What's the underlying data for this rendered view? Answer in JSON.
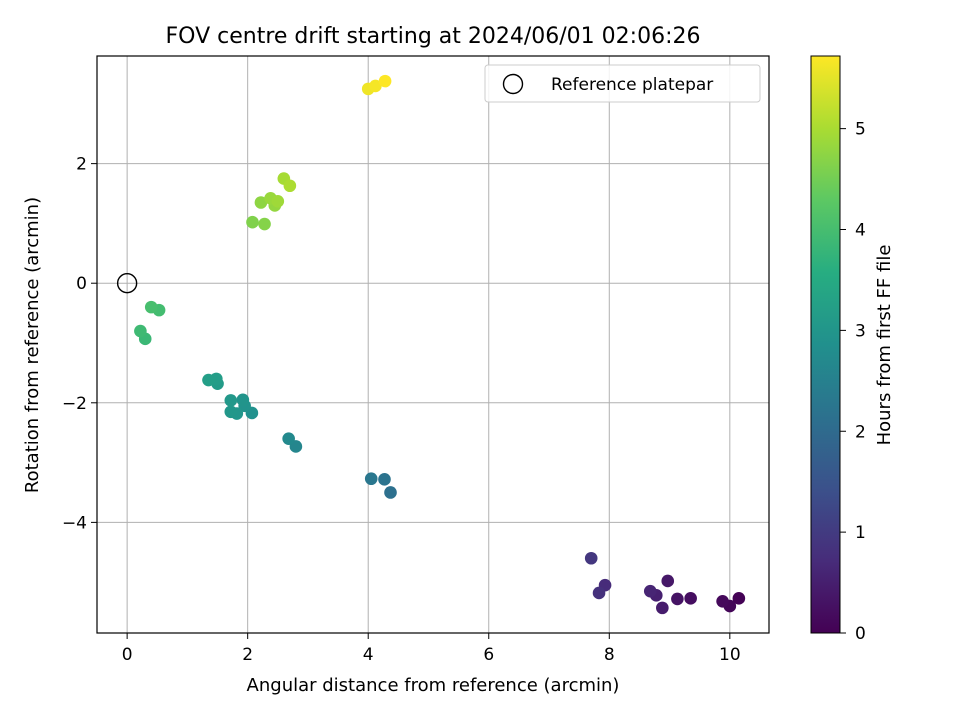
{
  "chart_data": {
    "type": "scatter",
    "title": "FOV centre drift starting at 2024/06/01 02:06:26",
    "xlabel": "Angular distance from reference (arcmin)",
    "ylabel": "Rotation from reference (arcmin)",
    "xlim": [
      -0.5,
      10.65
    ],
    "ylim": [
      -5.85,
      3.8
    ],
    "x_ticks": [
      0,
      2,
      4,
      6,
      8,
      10
    ],
    "x_tick_labels": [
      "0",
      "2",
      "4",
      "6",
      "8",
      "10"
    ],
    "y_ticks": [
      -4,
      -2,
      0,
      2
    ],
    "y_tick_labels": [
      "−4",
      "−2",
      "0",
      "2"
    ],
    "grid": true,
    "legend": {
      "placement": "top-right",
      "entries": [
        "Reference platepar"
      ]
    },
    "reference_point": {
      "x": 0,
      "y": 0,
      "label": "Reference platepar",
      "marker": "hollow-circle"
    },
    "colorbar": {
      "label": "Hours from first FF file",
      "colormap": "viridis",
      "range": [
        0,
        5.72
      ],
      "ticks": [
        0,
        1,
        2,
        3,
        4,
        5
      ],
      "tick_labels": [
        "0",
        "1",
        "2",
        "3",
        "4",
        "5"
      ]
    },
    "points": [
      {
        "x": 10.15,
        "y": -5.27,
        "c": 0.02
      },
      {
        "x": 10.0,
        "y": -5.4,
        "c": 0.08
      },
      {
        "x": 9.88,
        "y": -5.32,
        "c": 0.14
      },
      {
        "x": 9.35,
        "y": -5.27,
        "c": 0.22
      },
      {
        "x": 9.13,
        "y": -5.28,
        "c": 0.3
      },
      {
        "x": 8.97,
        "y": -4.98,
        "c": 0.38
      },
      {
        "x": 8.88,
        "y": -5.43,
        "c": 0.45
      },
      {
        "x": 8.78,
        "y": -5.22,
        "c": 0.52
      },
      {
        "x": 8.68,
        "y": -5.15,
        "c": 0.6
      },
      {
        "x": 7.93,
        "y": -5.05,
        "c": 0.72
      },
      {
        "x": 7.83,
        "y": -5.18,
        "c": 0.82
      },
      {
        "x": 7.7,
        "y": -4.6,
        "c": 0.92
      },
      {
        "x": 4.37,
        "y": -3.5,
        "c": 2.12
      },
      {
        "x": 4.27,
        "y": -3.28,
        "c": 2.2
      },
      {
        "x": 4.05,
        "y": -3.27,
        "c": 2.28
      },
      {
        "x": 2.8,
        "y": -2.73,
        "c": 2.62
      },
      {
        "x": 2.68,
        "y": -2.6,
        "c": 2.7
      },
      {
        "x": 2.07,
        "y": -2.17,
        "c": 2.88
      },
      {
        "x": 1.95,
        "y": -2.05,
        "c": 2.93
      },
      {
        "x": 1.92,
        "y": -1.95,
        "c": 2.97
      },
      {
        "x": 1.82,
        "y": -2.18,
        "c": 3.0
      },
      {
        "x": 1.72,
        "y": -2.15,
        "c": 3.03
      },
      {
        "x": 1.72,
        "y": -1.96,
        "c": 3.06
      },
      {
        "x": 1.5,
        "y": -1.68,
        "c": 3.13
      },
      {
        "x": 1.48,
        "y": -1.6,
        "c": 3.17
      },
      {
        "x": 1.35,
        "y": -1.62,
        "c": 3.2
      },
      {
        "x": 0.3,
        "y": -0.93,
        "c": 3.85
      },
      {
        "x": 0.22,
        "y": -0.8,
        "c": 3.9
      },
      {
        "x": 0.53,
        "y": -0.45,
        "c": 3.97
      },
      {
        "x": 0.4,
        "y": -0.4,
        "c": 4.02
      },
      {
        "x": 2.08,
        "y": 1.02,
        "c": 4.62
      },
      {
        "x": 2.28,
        "y": 0.99,
        "c": 4.67
      },
      {
        "x": 2.22,
        "y": 1.35,
        "c": 4.75
      },
      {
        "x": 2.45,
        "y": 1.3,
        "c": 4.8
      },
      {
        "x": 2.38,
        "y": 1.42,
        "c": 4.85
      },
      {
        "x": 2.5,
        "y": 1.37,
        "c": 4.9
      },
      {
        "x": 2.6,
        "y": 1.75,
        "c": 4.97
      },
      {
        "x": 2.7,
        "y": 1.63,
        "c": 5.02
      },
      {
        "x": 4.0,
        "y": 3.25,
        "c": 5.6
      },
      {
        "x": 4.12,
        "y": 3.3,
        "c": 5.65
      },
      {
        "x": 4.28,
        "y": 3.38,
        "c": 5.72
      }
    ]
  }
}
